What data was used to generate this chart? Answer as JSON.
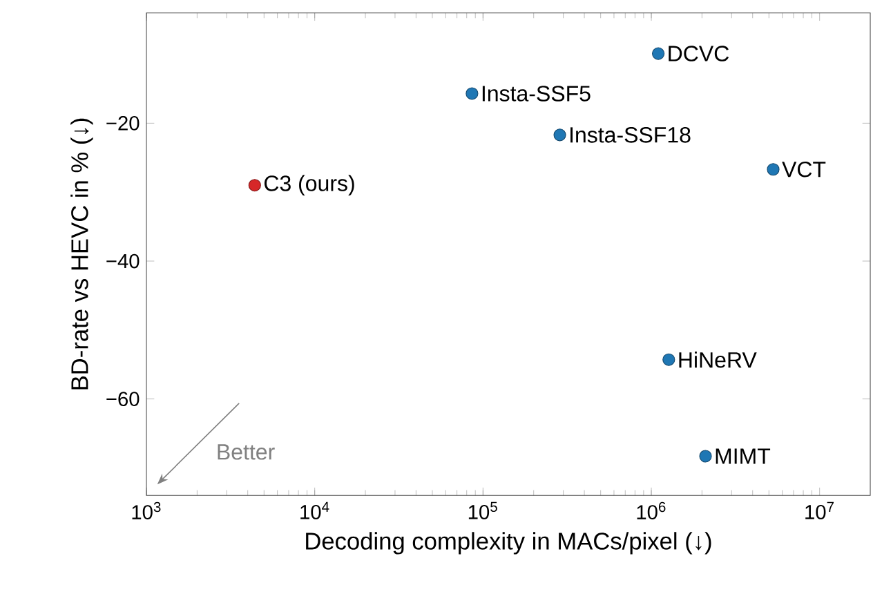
{
  "chart_data": {
    "type": "scatter",
    "xlabel": "Decoding complexity in MACs/pixel (↓)",
    "ylabel": "BD-rate vs HEVC in % (↓)",
    "log": "x",
    "grid": false,
    "marker": "circle",
    "xlim": [
      1000,
      20000000
    ],
    "ylim": [
      -74,
      -4
    ],
    "xticks": [
      {
        "value": 1000,
        "label": "10$^{3}$"
      },
      {
        "value": 10000,
        "label": "10$^{4}$"
      },
      {
        "value": 100000,
        "label": "10$^{5}$"
      },
      {
        "value": 1000000,
        "label": "10$^{6}$"
      },
      {
        "value": 10000000,
        "label": "10$^{7}$"
      }
    ],
    "yticks": [
      {
        "value": -60,
        "label": "−60"
      },
      {
        "value": -40,
        "label": "−40"
      },
      {
        "value": -20,
        "label": "−20"
      }
    ],
    "annotations": [
      "Better"
    ],
    "series": [
      {
        "name": "C3 (ours)",
        "color": "#d62728",
        "x": [
          4400
        ],
        "values": [
          -29.0
        ]
      },
      {
        "name": "Insta-SSF5",
        "color": "#1f77b4",
        "x": [
          86000
        ],
        "values": [
          -15.7
        ]
      },
      {
        "name": "Insta-SSF18",
        "color": "#1f77b4",
        "x": [
          286000
        ],
        "values": [
          -21.7
        ]
      },
      {
        "name": "DCVC",
        "color": "#1f77b4",
        "x": [
          1100000
        ],
        "values": [
          -9.9
        ]
      },
      {
        "name": "VCT",
        "color": "#1f77b4",
        "x": [
          5300000
        ],
        "values": [
          -26.7
        ]
      },
      {
        "name": "HiNeRV",
        "color": "#1f77b4",
        "x": [
          1270000
        ],
        "values": [
          -54.3
        ]
      },
      {
        "name": "MIMT",
        "color": "#1f77b4",
        "x": [
          2100000
        ],
        "values": [
          -68.3
        ]
      }
    ]
  }
}
